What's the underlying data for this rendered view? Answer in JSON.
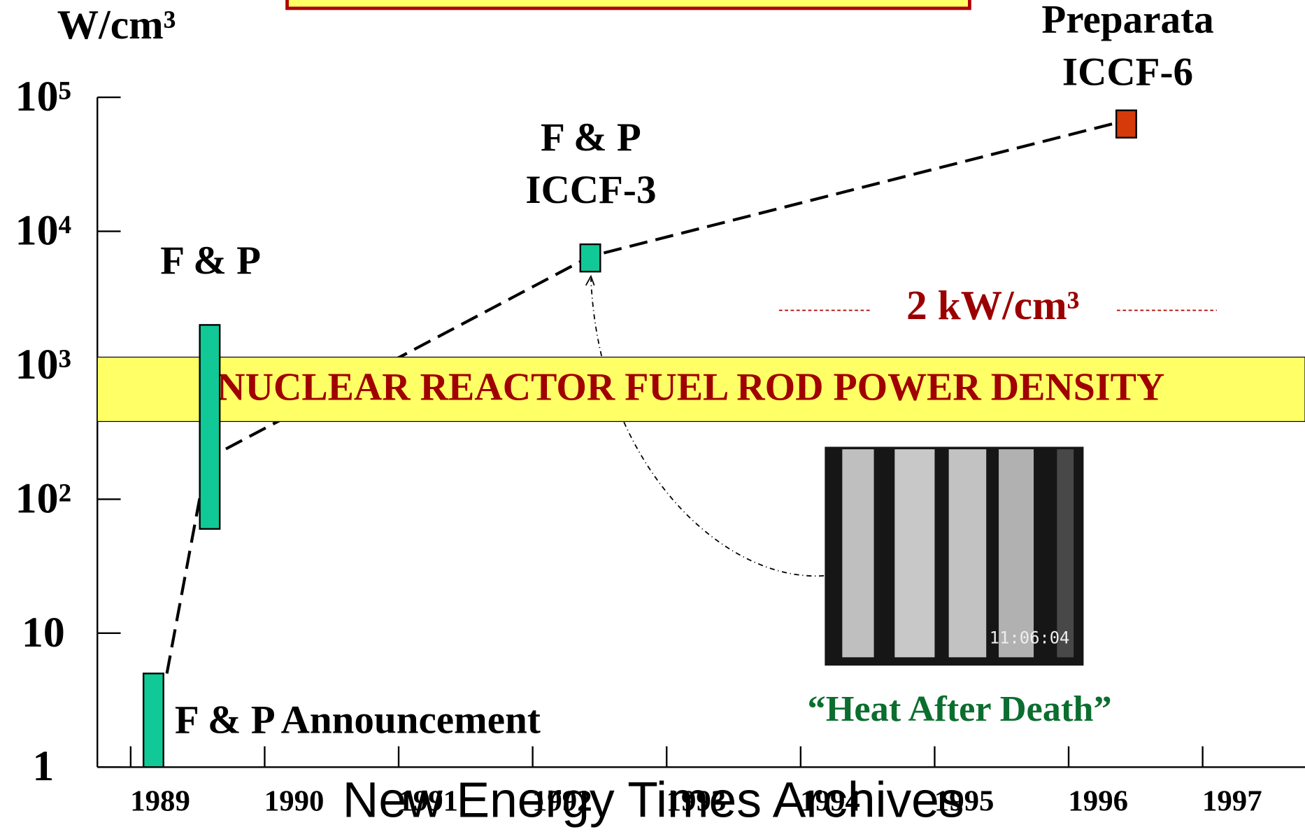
{
  "chart_data": {
    "type": "range",
    "y_label": "W/cm³",
    "log_y": true,
    "ylim": [
      1,
      100000
    ],
    "yticks": [
      1,
      10,
      {
        "value": 100,
        "label": "10²"
      },
      {
        "value": 1000,
        "label": "10³"
      },
      {
        "value": 10000,
        "label": "10⁴"
      },
      {
        "value": 100000,
        "label": "10⁵"
      }
    ],
    "xlim": [
      1989,
      1998
    ],
    "xticks": [
      {
        "value": 1989,
        "label": "1989"
      },
      {
        "value": 1990,
        "label": "1990"
      },
      {
        "value": 1991,
        "label": "1991"
      },
      {
        "value": 1992,
        "label": "1992"
      },
      {
        "value": 1993,
        "label": "1993"
      },
      {
        "value": 1994,
        "label": "1994"
      },
      {
        "value": 1995,
        "label": "1995"
      },
      {
        "value": 1996,
        "label": "1996"
      },
      {
        "value": 1997,
        "label": "1997"
      }
    ],
    "bars": [
      {
        "label": [
          "F & P Announcement"
        ],
        "x": 1989.4,
        "low": 1,
        "high": 5,
        "color": "#11c996"
      },
      {
        "label": [
          "F & P"
        ],
        "x": 1989.82,
        "low": 60,
        "high": 2000,
        "color": "#11c996"
      },
      {
        "label": [
          "F & P",
          "ICCF-3"
        ],
        "x": 1992.66,
        "low": 5000,
        "high": 8000,
        "color": "#11c996"
      },
      {
        "label": [
          "Preparata",
          "ICCF-6"
        ],
        "x": 1996.66,
        "low": 50000,
        "high": 80000,
        "color": "#d43a0a"
      }
    ],
    "trend": {
      "x": [
        1989.5,
        1989.8,
        1992.66,
        1996.6
      ],
      "values": [
        5,
        200,
        6500,
        65000
      ]
    },
    "band": {
      "label": "NUCLEAR REACTOR FUEL ROD POWER DENSITY",
      "low": 380,
      "high": 1150
    },
    "reference_label": "2 kW/cm³",
    "photo_timestamp": "11:06:04",
    "photo_caption": "“Heat After Death”",
    "watermark": "New Energy Times Archives"
  }
}
